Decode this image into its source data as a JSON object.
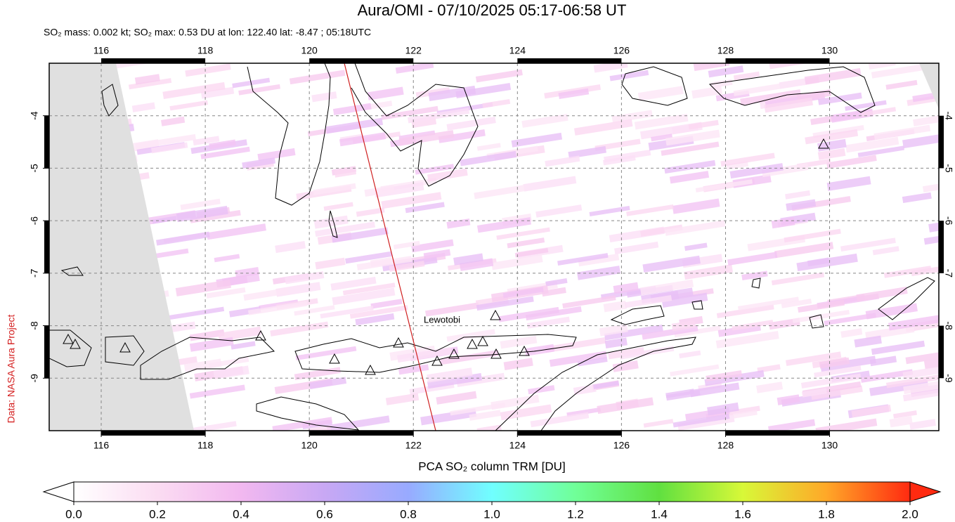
{
  "title": "Aura/OMI - 07/10/2025 05:17-06:58 UT",
  "subtitle": "SO₂ mass: 0.002 kt; SO₂ max: 0.53 DU at lon: 122.40 lat: -8.47 ; 05:18UTC",
  "map": {
    "xlim": [
      115,
      132.1
    ],
    "ylim": [
      -10,
      -3
    ],
    "xticks": [
      116,
      118,
      120,
      122,
      124,
      126,
      128,
      130
    ],
    "yticks": [
      -4,
      -5,
      -6,
      -7,
      -8,
      -9
    ],
    "grid": true,
    "annotation": "Lewotobi"
  },
  "colorbar": {
    "label": "PCA SO₂ column TRM [DU]",
    "lim": [
      0,
      2
    ],
    "ticks": [
      {
        "value": 0,
        "label": "0.0"
      },
      0.2,
      0.4,
      0.6,
      0.8,
      {
        "value": 1,
        "label": "1.0"
      },
      1.2,
      1.4,
      1.6,
      1.8,
      {
        "value": 2,
        "label": "2.0"
      }
    ]
  },
  "credit": "Data: NASA Aura Project"
}
